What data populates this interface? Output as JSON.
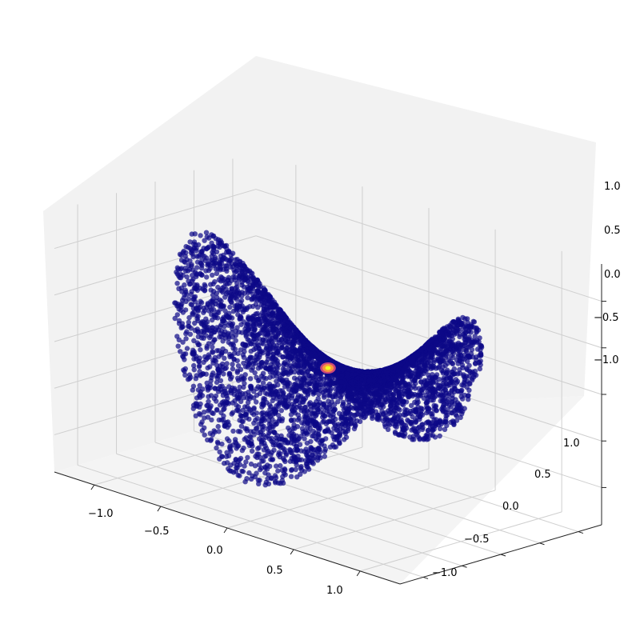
{
  "chart_data": {
    "type": "scatter",
    "projection": "3d",
    "surface": "saddle z = x^2 - y^2",
    "title": "",
    "xlabel": "",
    "ylabel": "",
    "zlabel": "",
    "xlim": [
      -1.3,
      1.3
    ],
    "ylim": [
      -1.3,
      1.3
    ],
    "zlim": [
      -1.4,
      1.4
    ],
    "x_ticks": [
      "−1.0",
      "−0.5",
      "0.0",
      "0.5",
      "1.0"
    ],
    "y_ticks": [
      "−1.0",
      "−0.5",
      "0.0",
      "0.5",
      "1.0"
    ],
    "z_ticks": [
      "−1.0",
      "−0.5",
      "0.0",
      "0.5",
      "1.0"
    ],
    "grid": true,
    "colormap": "plasma",
    "point_color": "#0d0887",
    "hotspot": {
      "x": 0.0,
      "y": 0.0,
      "z": 0.0,
      "colors": [
        "#cc4778",
        "#f89540",
        "#f0f921"
      ]
    },
    "n_points_approx": 5000
  }
}
